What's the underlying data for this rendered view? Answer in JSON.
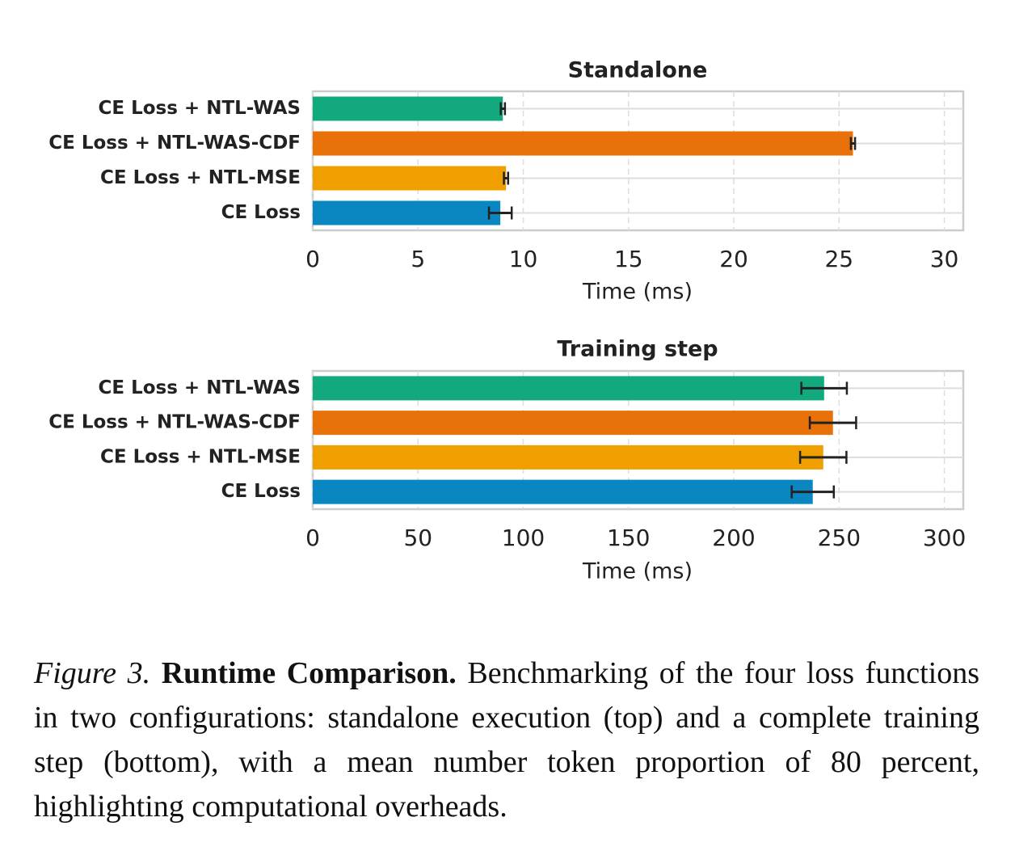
{
  "chart_data": [
    {
      "type": "bar",
      "orientation": "horizontal",
      "title": "Standalone",
      "xlabel": "Time (ms)",
      "categories": [
        "CE Loss + NTL-WAS",
        "CE Loss + NTL-WAS-CDF",
        "CE Loss + NTL-MSE",
        "CE Loss"
      ],
      "values": [
        9.03,
        25.66,
        9.18,
        8.91
      ],
      "errors": [
        0.1,
        0.1,
        0.1,
        0.54
      ],
      "colors": [
        "#12a97f",
        "#e8710a",
        "#ef9f00",
        "#0a86c0"
      ],
      "xlim": [
        0,
        30.9
      ],
      "xticks": [
        0,
        5,
        10,
        15,
        20,
        25,
        30
      ],
      "grid": true
    },
    {
      "type": "bar",
      "orientation": "horizontal",
      "title": "Training step",
      "xlabel": "Time (ms)",
      "categories": [
        "CE Loss + NTL-WAS",
        "CE Loss + NTL-WAS-CDF",
        "CE Loss + NTL-MSE",
        "CE Loss"
      ],
      "values": [
        242.9,
        247.1,
        242.5,
        237.5
      ],
      "errors": [
        10.8,
        11,
        11,
        10
      ],
      "colors": [
        "#12a97f",
        "#e8710a",
        "#ef9f00",
        "#0a86c0"
      ],
      "xlim": [
        0,
        309
      ],
      "xticks": [
        0,
        50,
        100,
        150,
        200,
        250,
        300
      ],
      "grid": true
    }
  ],
  "caption": {
    "label": "Figure 3.",
    "title": "Runtime Comparison.",
    "text": "Benchmarking of the four loss functions in two configurations: standalone execution (top) and a complete training step (bottom), with a mean number token proportion of 80 percent, highlighting computational overheads."
  }
}
